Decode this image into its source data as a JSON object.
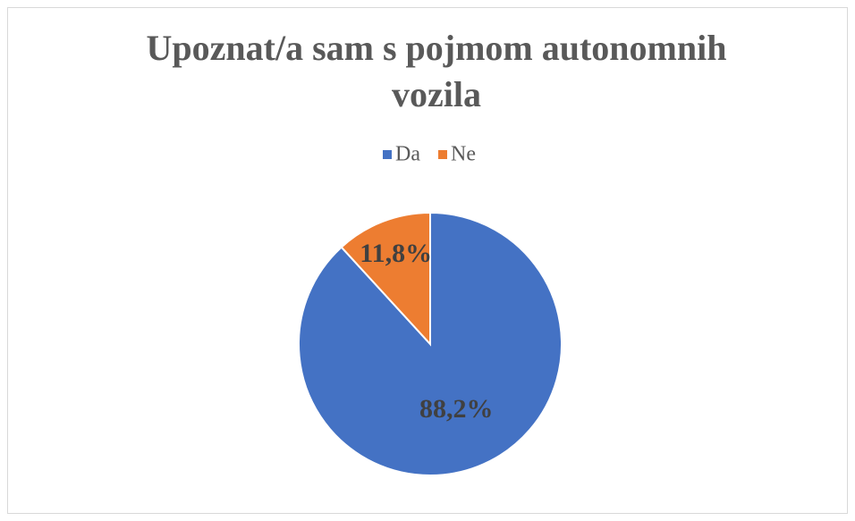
{
  "chart_data": {
    "type": "pie",
    "title": "Upoznat/a sam s pojmom autonomnih vozila",
    "categories": [
      "Da",
      "Ne"
    ],
    "values": [
      88.2,
      11.8
    ],
    "value_labels": [
      "88,2%",
      "11,8%"
    ],
    "colors": [
      "#4472c4",
      "#ed7d31"
    ],
    "legend": "top"
  }
}
